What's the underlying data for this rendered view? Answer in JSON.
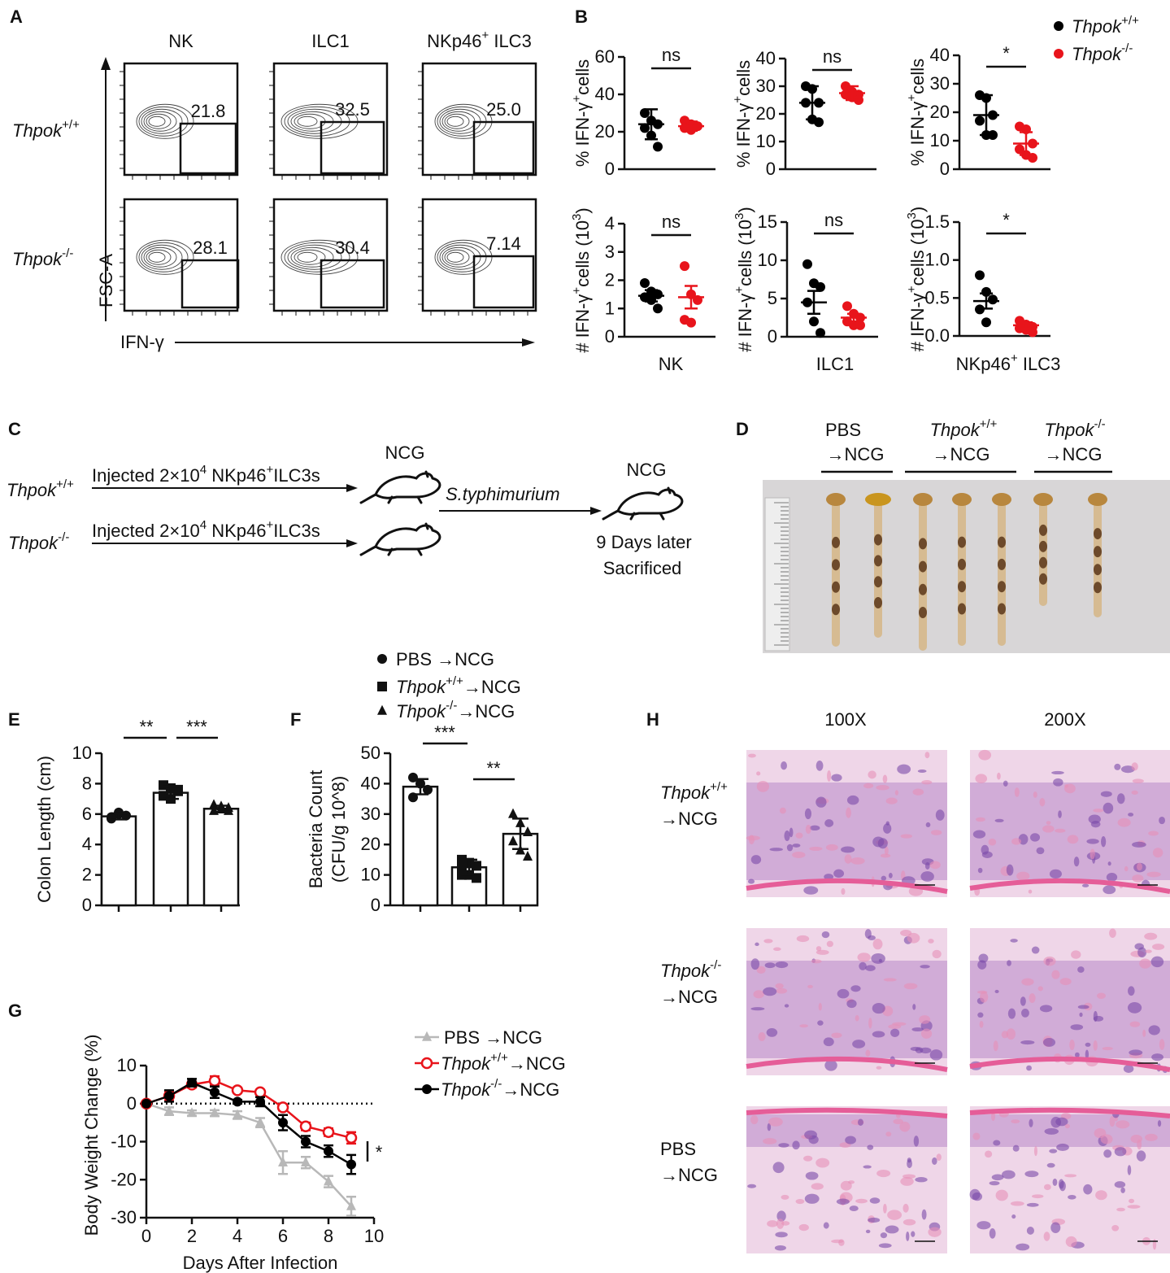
{
  "panel_letters": [
    "A",
    "B",
    "C",
    "D",
    "E",
    "F",
    "G",
    "H"
  ],
  "flow": {
    "columns": [
      "NK",
      "ILC1",
      [
        "NKp46",
        {
          "sup": "+"
        },
        " ILC3"
      ]
    ],
    "rows": [
      [
        {
          "i": "Thpok"
        },
        {
          "sup": "+/+"
        }
      ],
      [
        {
          "i": "Thpok"
        },
        {
          "sup": "-/-"
        }
      ]
    ],
    "gates": [
      [
        "21.8",
        "32.5",
        "25.0"
      ],
      [
        "28.1",
        "30.4",
        "7.14"
      ]
    ],
    "y_axis": "FSC-A",
    "x_axis": "IFN-γ"
  },
  "chart_data": [
    {
      "type": "dot",
      "ylabel": [
        "% IFN-γ",
        {
          "sup": "+"
        },
        "cells"
      ],
      "ylim": [
        0,
        60
      ],
      "yticks": [
        0,
        20,
        40,
        60
      ],
      "significance": "ns",
      "series": [
        {
          "color": "#000000",
          "values": [
            30,
            26,
            24,
            22,
            18,
            12
          ],
          "mean": 24,
          "error": 8
        },
        {
          "color": "#e8141b",
          "values": [
            26,
            24,
            23,
            22,
            21
          ],
          "mean": 23,
          "error": 2.5
        }
      ]
    },
    {
      "type": "dot",
      "ylabel": [
        "% IFN-γ",
        {
          "sup": "+"
        },
        "cells"
      ],
      "ylim": [
        0,
        40
      ],
      "yticks": [
        0,
        10,
        20,
        30,
        40
      ],
      "significance": "ns",
      "series": [
        {
          "color": "#000000",
          "values": [
            30,
            29,
            24,
            24,
            18,
            17
          ],
          "mean": 24,
          "error": 6
        },
        {
          "color": "#e8141b",
          "values": [
            30,
            28,
            27,
            27,
            26,
            25
          ],
          "mean": 27.5,
          "error": 2.5
        }
      ]
    },
    {
      "type": "dot",
      "ylabel": [
        "% IFN-γ",
        {
          "sup": "+"
        },
        "cells"
      ],
      "ylim": [
        0,
        40
      ],
      "yticks": [
        0,
        10,
        20,
        30,
        40
      ],
      "significance": "*",
      "series": [
        {
          "color": "#000000",
          "values": [
            26,
            25,
            19,
            17,
            12,
            12
          ],
          "mean": 19,
          "error": 7
        },
        {
          "color": "#e8141b",
          "values": [
            15,
            14,
            9,
            7,
            5,
            4
          ],
          "mean": 9,
          "error": 4
        }
      ]
    },
    {
      "type": "dot",
      "ylabel": [
        "# IFN-γ",
        {
          "sup": "+"
        },
        "cells (10",
        {
          "sup": "3"
        },
        ")"
      ],
      "ylim": [
        0,
        4
      ],
      "yticks": [
        0,
        1,
        2,
        3,
        4
      ],
      "significance": "ns",
      "series": [
        {
          "color": "#000000",
          "values": [
            1.9,
            1.6,
            1.5,
            1.4,
            1.3,
            1.0
          ],
          "mean": 1.45,
          "error": 0.2
        },
        {
          "color": "#e8141b",
          "values": [
            2.5,
            1.5,
            1.3,
            0.6,
            0.5
          ],
          "mean": 1.4,
          "error": 0.4
        }
      ]
    },
    {
      "type": "dot",
      "ylabel": [
        "# IFN-γ",
        {
          "sup": "+"
        },
        "cells (10",
        {
          "sup": "3"
        },
        ")"
      ],
      "ylim": [
        0,
        15
      ],
      "yticks": [
        0,
        5,
        10,
        15
      ],
      "significance": "ns",
      "series": [
        {
          "color": "#000000",
          "values": [
            9.5,
            7,
            6.5,
            4.5,
            2,
            0.5
          ],
          "mean": 4.5,
          "error": 1.5
        },
        {
          "color": "#e8141b",
          "values": [
            4,
            3,
            2.5,
            2,
            1.5,
            1.5
          ],
          "mean": 2.5,
          "error": 0.5
        }
      ]
    },
    {
      "type": "dot",
      "ylabel": [
        "# IFN-γ",
        {
          "sup": "+"
        },
        "cells (10",
        {
          "sup": "3"
        },
        ")"
      ],
      "ylim": [
        0,
        1.5
      ],
      "yticks": [
        {
          "value": 0,
          "label": "0.0"
        },
        0.5,
        {
          "value": 1,
          "label": "1.0"
        },
        1.5
      ],
      "significance": "*",
      "series": [
        {
          "color": "#000000",
          "values": [
            0.8,
            0.58,
            0.48,
            0.35,
            0.18
          ],
          "mean": 0.46,
          "error": 0.1
        },
        {
          "color": "#e8141b",
          "values": [
            0.2,
            0.15,
            0.12,
            0.1,
            0.08,
            0.05
          ],
          "mean": 0.14,
          "error": 0.04
        }
      ]
    },
    {
      "type": "bar",
      "ylabel": "Colon Length (cm)",
      "ylim": [
        0,
        10
      ],
      "yticks": [
        0,
        2,
        4,
        6,
        8,
        10
      ],
      "color": "#ffffff",
      "values": [
        5.85,
        7.4,
        6.35
      ],
      "errors": [
        0.2,
        0.4,
        0.2
      ],
      "points": [
        [
          5.7,
          6.0,
          5.9,
          5.8,
          6.1
        ],
        [
          7.9,
          7.7,
          7.5,
          7.2,
          7.0,
          7.6
        ],
        [
          6.6,
          6.5,
          6.4,
          6.2,
          6.3,
          6.2
        ]
      ],
      "markers": [
        "circle",
        "square",
        "triangle"
      ],
      "significance": [
        "**",
        "***"
      ]
    },
    {
      "type": "bar",
      "ylabel_lines": [
        "Bacteria Count",
        "(CFU/g 10^8)"
      ],
      "ylim": [
        0,
        50
      ],
      "yticks": [
        0,
        10,
        20,
        30,
        40,
        50
      ],
      "color": "#ffffff",
      "values": [
        39,
        12.5,
        23.5
      ],
      "errors": [
        2.5,
        2.5,
        5
      ],
      "points": [
        [
          42,
          40,
          38,
          35.5
        ],
        [
          15,
          14,
          13,
          12,
          10,
          9,
          10
        ],
        [
          30,
          27,
          24,
          21,
          18,
          16
        ]
      ],
      "markers": [
        "circle",
        "square",
        "triangle"
      ],
      "significance": [
        "***",
        "**"
      ]
    },
    {
      "type": "line",
      "xlabel": "Days After Infection",
      "ylabel": "Body Weight Change (%)",
      "x": [
        0,
        1,
        2,
        3,
        4,
        5,
        6,
        7,
        8,
        9
      ],
      "xlim": [
        0,
        10
      ],
      "xticks": [
        0,
        2,
        4,
        6,
        8,
        10
      ],
      "ylim": [
        -30,
        10
      ],
      "yticks": [
        -30,
        -20,
        -10,
        0,
        10
      ],
      "significance": "*",
      "series": [
        {
          "name": [
            "PBS →NCG"
          ],
          "color": "#b8b8b8",
          "marker": "triangle",
          "values": [
            0,
            -2,
            -2.5,
            -2.5,
            -3,
            -5,
            -15.5,
            -15.5,
            -20.5,
            -27
          ],
          "errors": [
            0,
            1,
            0.7,
            0.8,
            1,
            1.2,
            3,
            1.5,
            1.5,
            2.5
          ]
        },
        {
          "name": [
            {
              "i": "Thpok"
            },
            {
              "sup": "+/+"
            },
            "→NCG"
          ],
          "color": "#e8141b",
          "marker": "circle-open",
          "values": [
            0,
            2,
            5,
            6,
            3.5,
            3,
            -1,
            -6,
            -7.5,
            -9
          ],
          "errors": [
            0,
            1.3,
            0.8,
            1.2,
            0.6,
            0.5,
            0.8,
            1,
            1,
            1.5
          ]
        },
        {
          "name": [
            {
              "i": "Thpok"
            },
            {
              "sup": "-/-"
            },
            "→NCG"
          ],
          "color": "#000000",
          "marker": "circle",
          "values": [
            0,
            2,
            5.5,
            3,
            0.5,
            0.5,
            -5,
            -10,
            -12.5,
            -16
          ],
          "errors": [
            0,
            1.5,
            1,
            1.5,
            0.5,
            1.2,
            2,
            1.5,
            1.5,
            2.5
          ]
        }
      ]
    }
  ],
  "b_legend": [
    [
      {
        "i": "Thpok"
      },
      {
        "sup": "+/+"
      }
    ],
    [
      {
        "i": "Thpok"
      },
      {
        "sup": "-/-"
      }
    ]
  ],
  "b_xlabels": [
    "NK",
    "ILC1",
    [
      "NKp46",
      {
        "sup": "+"
      },
      " ILC3"
    ]
  ],
  "diagram": {
    "donors": [
      [
        {
          "i": "Thpok"
        },
        {
          "sup": "+/+"
        }
      ],
      [
        {
          "i": "Thpok"
        },
        {
          "sup": "-/-"
        }
      ]
    ],
    "injections": [
      [
        "Injected  2×10",
        {
          "sup": "4"
        },
        " NKp46",
        {
          "sup": "+"
        },
        "ILC3s"
      ],
      [
        "Injected  2×10",
        {
          "sup": "4"
        },
        " NKp46",
        {
          "sup": "+"
        },
        "ILC3s"
      ]
    ],
    "recipient": "NCG",
    "infection": "S.typhimurium",
    "end_mouse": "NCG",
    "outcome": [
      "9 Days later",
      "Sacrificed"
    ]
  },
  "photo_groups": [
    {
      "line1": "PBS",
      "line2": "→NCG"
    },
    {
      "line1": [
        {
          "i": "Thpok"
        },
        {
          "sup": "+/+"
        }
      ],
      "line2": "→NCG"
    },
    {
      "line1": [
        {
          "i": "Thpok"
        },
        {
          "sup": "-/-"
        }
      ],
      "line2": "→NCG"
    }
  ],
  "ef_legend": [
    [
      "PBS →NCG"
    ],
    [
      {
        "i": "Thpok"
      },
      {
        "sup": "+/+"
      },
      "→NCG"
    ],
    [
      {
        "i": "Thpok"
      },
      {
        "sup": "-/-"
      },
      "→NCG"
    ]
  ],
  "histology": {
    "columns": [
      "100X",
      "200X"
    ],
    "rows": [
      {
        "line1": [
          {
            "i": "Thpok"
          },
          {
            "sup": "+/+"
          }
        ],
        "line2": "→NCG"
      },
      {
        "line1": [
          {
            "i": "Thpok"
          },
          {
            "sup": "-/-"
          }
        ],
        "line2": "→NCG"
      },
      {
        "line1": "PBS",
        "line2": "→NCG"
      }
    ]
  }
}
